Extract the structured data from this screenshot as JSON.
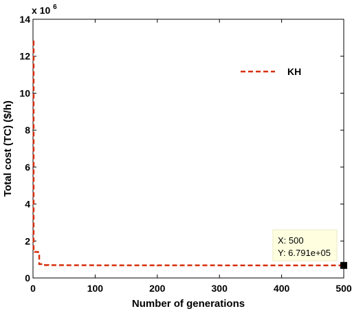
{
  "chart_data": {
    "type": "line",
    "xlabel": "Number of generations",
    "ylabel": "Total cost (TC) ($/h)",
    "xlim": [
      0,
      500
    ],
    "ylim": [
      0,
      14
    ],
    "x_ticks": [
      0,
      100,
      200,
      300,
      400,
      500
    ],
    "y_ticks": [
      0,
      2,
      4,
      6,
      8,
      10,
      12,
      14
    ],
    "y_exponent_base": "x 10",
    "y_exponent_power": "6",
    "grid": false,
    "legend_position": "top-right",
    "series": [
      {
        "name": "KH",
        "color": "#d62e0c",
        "style": "dashed",
        "x": [
          0,
          1,
          2,
          3,
          5,
          7,
          10,
          15,
          25,
          50,
          100,
          200,
          300,
          400,
          500
        ],
        "y": [
          12.8,
          1.45,
          1.42,
          1.41,
          1.41,
          1.4,
          0.75,
          0.7,
          0.695,
          0.69,
          0.685,
          0.682,
          0.681,
          0.68,
          0.679
        ]
      }
    ],
    "datatip": {
      "x": 500,
      "y": 0.6791,
      "x_text": "X: 500",
      "y_text": "Y: 6.791e+05"
    }
  }
}
